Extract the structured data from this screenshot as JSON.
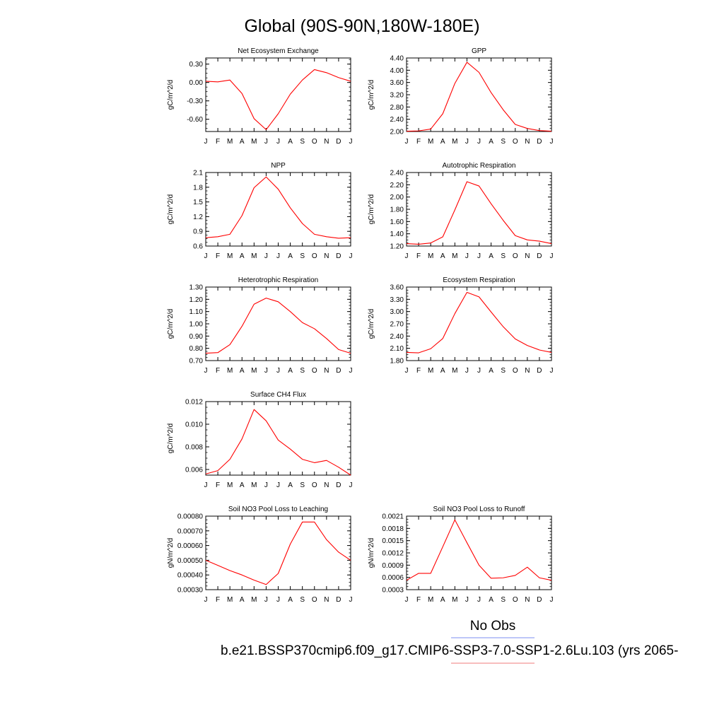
{
  "page_title": "Global (90S-90N,180W-180E)",
  "legend": {
    "obs_label": "No Obs",
    "obs_color": "#7b8cf0",
    "model_label": "b.e21.BSSP370cmip6.f09_g17.CMIP6-SSP3-7.0-SSP1-2.6Lu.103 (yrs 2065-",
    "model_color": "#f07b7b"
  },
  "months": [
    "J",
    "F",
    "M",
    "A",
    "M",
    "J",
    "J",
    "A",
    "S",
    "O",
    "N",
    "D",
    "J"
  ],
  "line_color": "#ff0000",
  "chart_data": [
    {
      "id": "nee",
      "type": "line",
      "title": "Net Ecosystem Exchange",
      "ylabel": "gC/m^2/d",
      "ylim": [
        -0.8,
        0.4
      ],
      "yticks": [
        0.3,
        0.0,
        -0.3,
        -0.6
      ],
      "ytick_labels": [
        "0.30",
        "0.00",
        "-0.30",
        "-0.60"
      ],
      "values": [
        0.02,
        0.01,
        0.04,
        -0.18,
        -0.59,
        -0.77,
        -0.51,
        -0.19,
        0.04,
        0.21,
        0.16,
        0.08,
        0.02
      ]
    },
    {
      "id": "gpp",
      "type": "line",
      "title": "GPP",
      "ylabel": "gC/m^2/d",
      "ylim": [
        2.0,
        4.4
      ],
      "yticks": [
        4.4,
        4.0,
        3.6,
        3.2,
        2.8,
        2.4,
        2.0
      ],
      "ytick_labels": [
        "4.40",
        "4.00",
        "3.60",
        "3.20",
        "2.80",
        "2.40",
        "2.00"
      ],
      "values": [
        2.01,
        2.02,
        2.08,
        2.58,
        3.57,
        4.26,
        3.93,
        3.27,
        2.71,
        2.23,
        2.1,
        2.03,
        2.01
      ]
    },
    {
      "id": "npp",
      "type": "line",
      "title": "NPP",
      "ylabel": "gC/m^2/d",
      "ylim": [
        0.6,
        2.1
      ],
      "yticks": [
        2.1,
        1.8,
        1.5,
        1.2,
        0.9,
        0.6
      ],
      "ytick_labels": [
        "2.1",
        "1.8",
        "1.5",
        "1.2",
        "0.9",
        "0.6"
      ],
      "values": [
        0.77,
        0.79,
        0.84,
        1.22,
        1.79,
        2.01,
        1.76,
        1.38,
        1.06,
        0.84,
        0.79,
        0.76,
        0.77
      ]
    },
    {
      "id": "ar",
      "type": "line",
      "title": "Autotrophic Respiration",
      "ylabel": "gC/m^2/d",
      "ylim": [
        1.2,
        2.4
      ],
      "yticks": [
        2.4,
        2.2,
        2.0,
        1.8,
        1.6,
        1.4,
        1.2
      ],
      "ytick_labels": [
        "2.40",
        "2.20",
        "2.00",
        "1.80",
        "1.60",
        "1.40",
        "1.20"
      ],
      "values": [
        1.24,
        1.23,
        1.25,
        1.35,
        1.79,
        2.25,
        2.18,
        1.89,
        1.62,
        1.37,
        1.3,
        1.28,
        1.24
      ]
    },
    {
      "id": "hr",
      "type": "line",
      "title": "Heterotrophic Respiration",
      "ylabel": "gC/m^2/d",
      "ylim": [
        0.7,
        1.3
      ],
      "yticks": [
        1.3,
        1.2,
        1.1,
        1.0,
        0.9,
        0.8,
        0.7
      ],
      "ytick_labels": [
        "1.30",
        "1.20",
        "1.10",
        "1.00",
        "0.90",
        "0.80",
        "0.70"
      ],
      "values": [
        0.76,
        0.765,
        0.83,
        0.98,
        1.16,
        1.21,
        1.18,
        1.1,
        1.01,
        0.96,
        0.88,
        0.79,
        0.76
      ]
    },
    {
      "id": "er",
      "type": "line",
      "title": "Ecosystem Respiration",
      "ylabel": "gC/m^2/d",
      "ylim": [
        1.8,
        3.6
      ],
      "yticks": [
        3.6,
        3.3,
        3.0,
        2.7,
        2.4,
        2.1,
        1.8
      ],
      "ytick_labels": [
        "3.60",
        "3.30",
        "3.00",
        "2.70",
        "2.40",
        "2.10",
        "1.80"
      ],
      "values": [
        2.0,
        1.99,
        2.09,
        2.34,
        2.95,
        3.47,
        3.36,
        2.99,
        2.63,
        2.33,
        2.17,
        2.06,
        2.0
      ]
    },
    {
      "id": "ch4",
      "type": "line",
      "title": "Surface CH4 Flux",
      "ylabel": "gC/m^2/d",
      "ylim": [
        0.0055,
        0.012
      ],
      "yticks": [
        0.012,
        0.01,
        0.008,
        0.006
      ],
      "ytick_labels": [
        "0.012",
        "0.010",
        "0.008",
        "0.006"
      ],
      "values": [
        0.0056,
        0.0059,
        0.0069,
        0.0087,
        0.0113,
        0.0103,
        0.0086,
        0.0078,
        0.0069,
        0.0066,
        0.0068,
        0.0062,
        0.0055
      ]
    },
    {
      "id": "leach",
      "type": "line",
      "title": "Soil NO3 Pool Loss to Leaching",
      "ylabel": "gN/m^2/d",
      "ylim": [
        0.0003,
        0.0008
      ],
      "yticks": [
        0.0008,
        0.0007,
        0.0006,
        0.0005,
        0.0004,
        0.0003
      ],
      "ytick_labels": [
        "0.00080",
        "0.00070",
        "0.00060",
        "0.00050",
        "0.00040",
        "0.00030"
      ],
      "values": [
        0.0005,
        0.000465,
        0.00043,
        0.0004,
        0.000365,
        0.000335,
        0.00041,
        0.00061,
        0.00076,
        0.00076,
        0.00064,
        0.000555,
        0.0005
      ]
    },
    {
      "id": "runoff",
      "type": "line",
      "title": "Soil NO3 Pool Loss to Runoff",
      "ylabel": "gN/m^2/d",
      "ylim": [
        0.0003,
        0.0021
      ],
      "yticks": [
        0.0021,
        0.0018,
        0.0015,
        0.0012,
        0.0009,
        0.0006,
        0.0003
      ],
      "ytick_labels": [
        "0.0021",
        "0.0018",
        "0.0015",
        "0.0012",
        "0.0009",
        "0.0006",
        "0.0003"
      ],
      "values": [
        0.00053,
        0.0007,
        0.0007,
        0.00135,
        0.00201,
        0.00145,
        0.0009,
        0.00058,
        0.00059,
        0.00065,
        0.00085,
        0.00059,
        0.00053
      ]
    }
  ]
}
